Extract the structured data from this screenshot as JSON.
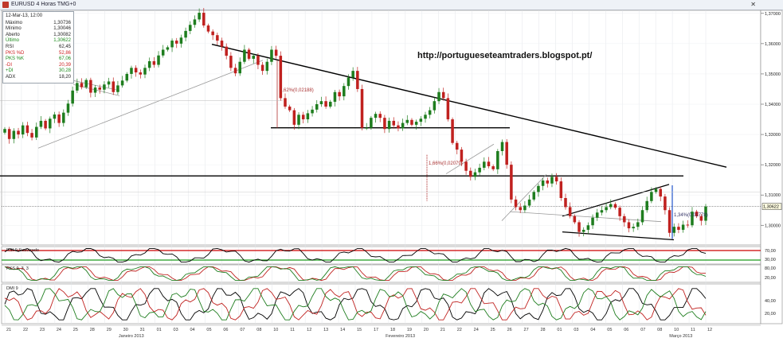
{
  "window": {
    "title": "EURUSD 4 Horas TMG+0",
    "close_icon": "close-icon"
  },
  "info_panel": {
    "date_time": "12-Mar-13, 12:00",
    "rows": [
      {
        "label": "Máximo",
        "value": "1,30736",
        "color": "#222222"
      },
      {
        "label": "Mínimo",
        "value": "1,30046",
        "color": "#222222"
      },
      {
        "label": "Aberto",
        "value": "1,30082",
        "color": "#222222"
      },
      {
        "label": "Último",
        "value": "1,30622",
        "color": "#1a8a1a"
      },
      {
        "label": "RSI",
        "value": "62,45",
        "color": "#222222"
      },
      {
        "label": "PKS %D",
        "value": "52,86",
        "color": "#cc2222"
      },
      {
        "label": "PKS %K",
        "value": "67,06",
        "color": "#1a8a1a"
      },
      {
        "label": "-DI",
        "value": "20,39",
        "color": "#cc2222"
      },
      {
        "label": "+DI",
        "value": "30,28",
        "color": "#1a8a1a"
      },
      {
        "label": "ADX",
        "value": "18,20",
        "color": "#222222"
      }
    ]
  },
  "watermark": "http://portugueseteamtraders.blogspot.pt/",
  "annotations": {
    "drop1": "1,62%(0,02188)",
    "drop2": "1,66%(0,02079)",
    "rise": "1,34%(0,01778)"
  },
  "chart_data": {
    "type": "candlestick",
    "symbol": "EURUSD",
    "timeframe": "4 Horas",
    "ylim": [
      1.2935,
      1.371
    ],
    "y_ticks": [
      "1,37000",
      "1,36000",
      "1,35000",
      "1,34000",
      "1,33000",
      "1,32000",
      "1,31000",
      "1,30000"
    ],
    "last_price": "1,30622",
    "last_price_value": 1.30622,
    "x_ticks": [
      "21",
      "22",
      "23",
      "24",
      "25",
      "28",
      "29",
      "30",
      "31",
      "01",
      "03",
      "04",
      "05",
      "06",
      "07",
      "08",
      "10",
      "11",
      "12",
      "13",
      "14",
      "15",
      "17",
      "18",
      "19",
      "20",
      "21",
      "22",
      "24",
      "25",
      "26",
      "27",
      "28",
      "01",
      "03",
      "04",
      "05",
      "06",
      "07",
      "08",
      "10",
      "11",
      "12"
    ],
    "month_labels": [
      {
        "label": "Janeiro 2013",
        "index": 3
      },
      {
        "label": "Fevereiro 2013",
        "index": 19
      },
      {
        "label": "Março 2013",
        "index": 36
      }
    ],
    "close": [
      1.3318,
      1.3285,
      1.3312,
      1.33,
      1.333,
      1.3305,
      1.329,
      1.3325,
      1.3345,
      1.332,
      1.3352,
      1.3366,
      1.3338,
      1.3372,
      1.3402,
      1.3445,
      1.347,
      1.3456,
      1.348,
      1.3438,
      1.3455,
      1.3448,
      1.3465,
      1.3475,
      1.344,
      1.3462,
      1.3478,
      1.35,
      1.352,
      1.3505,
      1.3498,
      1.352,
      1.3542,
      1.353,
      1.3561,
      1.358,
      1.3588,
      1.361,
      1.36,
      1.362,
      1.3642,
      1.3662,
      1.368,
      1.3702,
      1.366,
      1.364,
      1.3628,
      1.361,
      1.359,
      1.356,
      1.352,
      1.3502,
      1.354,
      1.358,
      1.355,
      1.356,
      1.353,
      1.351,
      1.354,
      1.358,
      1.356,
      1.342,
      1.3392,
      1.338,
      1.3332,
      1.3365,
      1.335,
      1.337,
      1.3382,
      1.34,
      1.341,
      1.3392,
      1.3408,
      1.344,
      1.3426,
      1.346,
      1.3488,
      1.351,
      1.345,
      1.3322,
      1.3322,
      1.3355,
      1.3368,
      1.3355,
      1.3318,
      1.3345,
      1.333,
      1.332,
      1.3338,
      1.3348,
      1.3332,
      1.3342,
      1.3352,
      1.3365,
      1.338,
      1.341,
      1.344,
      1.342,
      1.335,
      1.3272,
      1.325,
      1.321,
      1.318,
      1.316,
      1.3175,
      1.319,
      1.321,
      1.3195,
      1.3185,
      1.3245,
      1.3275,
      1.32,
      1.3085,
      1.306,
      1.305,
      1.3065,
      1.3085,
      1.311,
      1.313,
      1.3148,
      1.3138,
      1.316,
      1.3145,
      1.309,
      1.306,
      1.303,
      1.301,
      1.2978,
      1.2985,
      1.3,
      1.3025,
      1.3042,
      1.305,
      1.306,
      1.307,
      1.3058,
      1.303,
      1.301,
      1.299,
      1.2995,
      1.301,
      1.305,
      1.308,
      1.311,
      1.312,
      1.3095,
      1.305,
      1.2975,
      1.2995,
      1.2985,
      1.3002,
      1.3,
      1.3045,
      1.303,
      1.3015,
      1.3062
    ],
    "rsi": {
      "name": "RSI 9 Suavizado",
      "levels": [
        70,
        30
      ]
    },
    "stochastic": {
      "name": "PKS 9, 3, 3",
      "levels": [
        80,
        20
      ]
    },
    "dmi": {
      "name": "DMI 9",
      "levels": [
        40,
        20
      ]
    }
  }
}
